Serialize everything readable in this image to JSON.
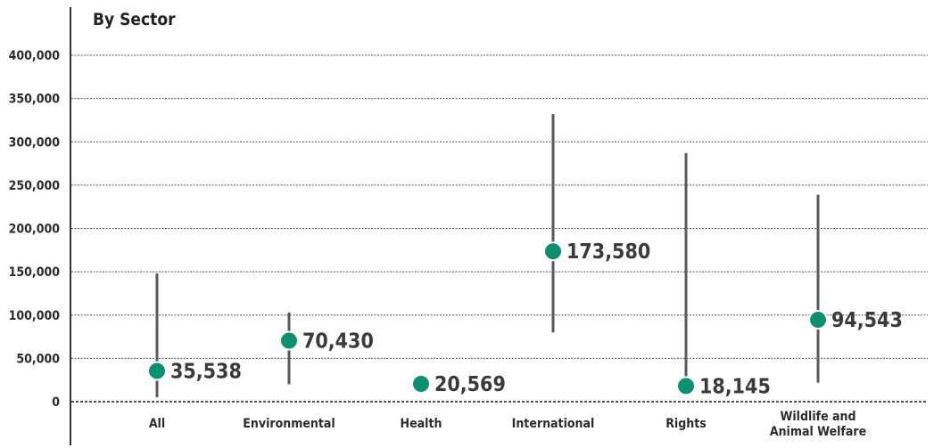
{
  "chart_data": {
    "type": "scatter",
    "title": "By Sector",
    "xlabel": "",
    "ylabel": "",
    "ylim": [
      0,
      400000
    ],
    "y_ticks": [
      0,
      50000,
      100000,
      150000,
      200000,
      250000,
      300000,
      350000,
      400000
    ],
    "y_tick_labels": [
      "0",
      "50,000",
      "100,000",
      "150,000",
      "200,000",
      "250,000",
      "300,000",
      "350,000",
      "400,000"
    ],
    "grid": true,
    "categories": [
      [
        "All"
      ],
      [
        "Environmental"
      ],
      [
        "Health"
      ],
      [
        "International"
      ],
      [
        "Rights"
      ],
      [
        "Wildlife and",
        "Animal Welfare"
      ]
    ],
    "values": [
      35538,
      70430,
      20569,
      173580,
      18145,
      94543
    ],
    "value_labels": [
      "35,538",
      "70,430",
      "20,569",
      "173,580",
      "18,145",
      "94,543"
    ],
    "range_low": [
      5000,
      20000,
      0,
      80000,
      12000,
      22000
    ],
    "range_high": [
      148000,
      103000,
      0,
      332000,
      287000,
      239000
    ],
    "colors": {
      "marker": "#0e8f6f",
      "range_line": "#595959",
      "grid": "#555555",
      "axis": "#333333"
    }
  }
}
